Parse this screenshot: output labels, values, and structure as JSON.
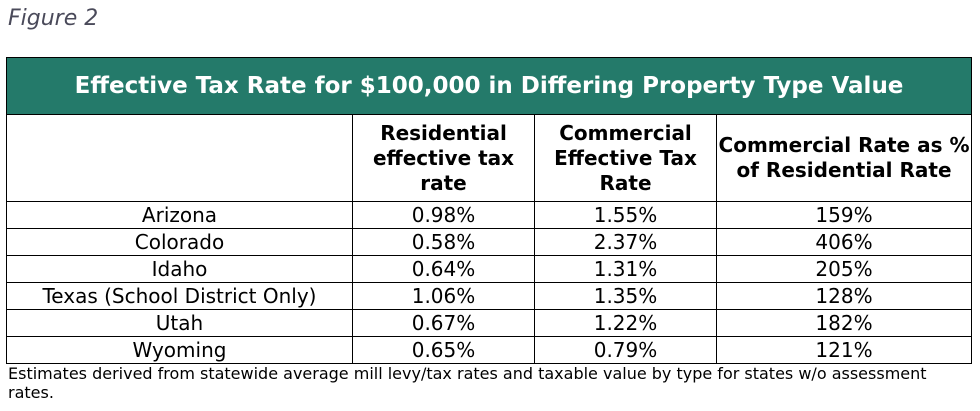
{
  "figure_label": "Figure 2",
  "table": {
    "title": "Effective Tax Rate for $100,000 in Differing Property Type Value",
    "headers": [
      "",
      "Residential effective tax rate",
      "Commercial Effective Tax Rate",
      "Commercial Rate as % of Residential Rate"
    ],
    "rows": [
      {
        "state": "Arizona",
        "residential": "0.98%",
        "commercial": "1.55%",
        "ratio": "159%"
      },
      {
        "state": "Colorado",
        "residential": "0.58%",
        "commercial": "2.37%",
        "ratio": "406%"
      },
      {
        "state": "Idaho",
        "residential": "0.64%",
        "commercial": "1.31%",
        "ratio": "205%"
      },
      {
        "state": "Texas (School District Only)",
        "residential": "1.06%",
        "commercial": "1.35%",
        "ratio": "128%"
      },
      {
        "state": "Utah",
        "residential": "0.67%",
        "commercial": "1.22%",
        "ratio": "182%"
      },
      {
        "state": "Wyoming",
        "residential": "0.65%",
        "commercial": "0.79%",
        "ratio": "121%"
      }
    ]
  },
  "footnote": "Estimates derived from statewide average mill levy/tax rates and taxable value by type for states w/o assessment rates.",
  "colors": {
    "title_bg": "#247a6a",
    "title_text": "#ffffff",
    "figure_label": "#4a4a5a"
  }
}
